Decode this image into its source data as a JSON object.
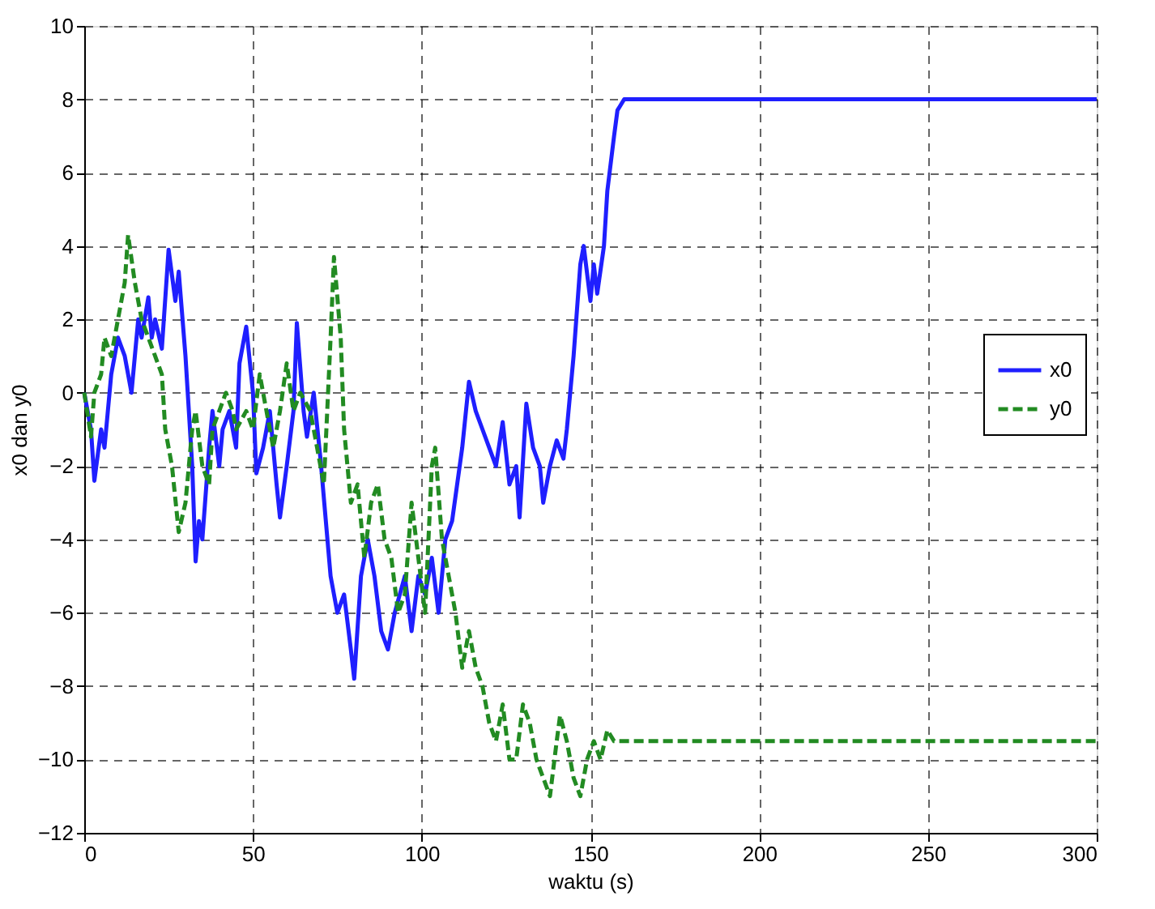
{
  "chart_data": {
    "type": "line",
    "xlabel": "waktu (s)",
    "ylabel": "x0 dan y0",
    "xlim": [
      0,
      300
    ],
    "ylim": [
      -12,
      10
    ],
    "xticks": [
      0,
      50,
      100,
      150,
      200,
      250,
      300
    ],
    "yticks": [
      -12,
      -10,
      -8,
      -6,
      -4,
      -2,
      0,
      2,
      4,
      6,
      8,
      10
    ],
    "grid": true,
    "legend": "right",
    "series": [
      {
        "name": "x0",
        "color": "#1f1fff",
        "line_style": "solid",
        "x": [
          0,
          2,
          3,
          5,
          6,
          8,
          10,
          12,
          14,
          15,
          16,
          17,
          19,
          20,
          21,
          23,
          25,
          27,
          28,
          30,
          32,
          33,
          34,
          35,
          37,
          38,
          40,
          41,
          43,
          45,
          46,
          48,
          50,
          51,
          53,
          55,
          57,
          58,
          60,
          62,
          63,
          65,
          66,
          68,
          70,
          73,
          75,
          77,
          79,
          80,
          82,
          84,
          86,
          88,
          90,
          92,
          95,
          97,
          99,
          101,
          103,
          105,
          107,
          109,
          112,
          114,
          116,
          118,
          120,
          122,
          124,
          126,
          128,
          129,
          131,
          133,
          135,
          136,
          138,
          140,
          142,
          143,
          145,
          147,
          148,
          150,
          151,
          152,
          154,
          155,
          157,
          158,
          160,
          300
        ],
        "values": [
          0,
          -1,
          -2.4,
          -1,
          -1.5,
          0.5,
          1.5,
          1,
          0,
          1,
          2,
          1.5,
          2.6,
          1.5,
          2,
          1.2,
          3.9,
          2.5,
          3.3,
          1,
          -2,
          -4.6,
          -3.5,
          -4,
          -1.5,
          -0.5,
          -2,
          -1,
          -0.5,
          -1.5,
          0.8,
          1.8,
          0,
          -2.2,
          -1.5,
          -0.5,
          -2.5,
          -3.4,
          -2,
          -0.5,
          1.9,
          -0.5,
          -1.2,
          0,
          -1.8,
          -5,
          -6,
          -5.5,
          -7,
          -7.8,
          -5,
          -4,
          -5,
          -6.5,
          -7,
          -6,
          -5,
          -6.5,
          -5,
          -5.5,
          -4.5,
          -6,
          -4,
          -3.5,
          -1.5,
          0.3,
          -0.5,
          -1,
          -1.5,
          -2,
          -0.8,
          -2.5,
          -2,
          -3.4,
          -0.3,
          -1.5,
          -2,
          -3,
          -2,
          -1.3,
          -1.8,
          -1,
          1,
          3.5,
          4,
          2.5,
          3.5,
          2.7,
          4,
          5.5,
          7,
          7.7,
          8,
          8
        ]
      },
      {
        "name": "y0",
        "color": "#228b22",
        "line_style": "dashed",
        "x": [
          0,
          2,
          3,
          5,
          6,
          8,
          10,
          12,
          13,
          15,
          17,
          19,
          21,
          23,
          24,
          26,
          28,
          30,
          32,
          33,
          35,
          37,
          38,
          40,
          42,
          44,
          45,
          48,
          50,
          52,
          54,
          56,
          58,
          60,
          62,
          64,
          67,
          69,
          71,
          73,
          74,
          76,
          77,
          79,
          81,
          83,
          85,
          87,
          89,
          91,
          93,
          95,
          97,
          99,
          101,
          103,
          104,
          106,
          108,
          110,
          112,
          114,
          116,
          118,
          120,
          122,
          124,
          126,
          128,
          130,
          132,
          134,
          136,
          138,
          140,
          141,
          143,
          145,
          147,
          149,
          151,
          153,
          155,
          157,
          300
        ],
        "values": [
          0,
          -1.2,
          0,
          0.5,
          1.5,
          1,
          2,
          3,
          4.3,
          3,
          2,
          1.5,
          1,
          0.5,
          -1,
          -2,
          -3.8,
          -3,
          -1,
          -0.5,
          -2,
          -2.5,
          -1,
          -0.5,
          0,
          -0.5,
          -1,
          -0.5,
          -1,
          0.5,
          -0.5,
          -1.5,
          -0.5,
          0.8,
          -0.5,
          0,
          -0.5,
          -1.5,
          -2.5,
          1.5,
          3.7,
          1.5,
          -1,
          -3,
          -2.5,
          -4.5,
          -3,
          -2.5,
          -4,
          -4.5,
          -6,
          -5.5,
          -3,
          -4.5,
          -6,
          -2,
          -1.5,
          -4,
          -5,
          -6,
          -7.5,
          -6.5,
          -7.5,
          -8,
          -9,
          -9.5,
          -8.5,
          -10,
          -10,
          -8.5,
          -9,
          -10,
          -10.5,
          -11,
          -9.5,
          -8.8,
          -9.5,
          -10.5,
          -11,
          -10,
          -9.5,
          -10,
          -9.2,
          -9.5,
          -9.5
        ]
      }
    ]
  }
}
